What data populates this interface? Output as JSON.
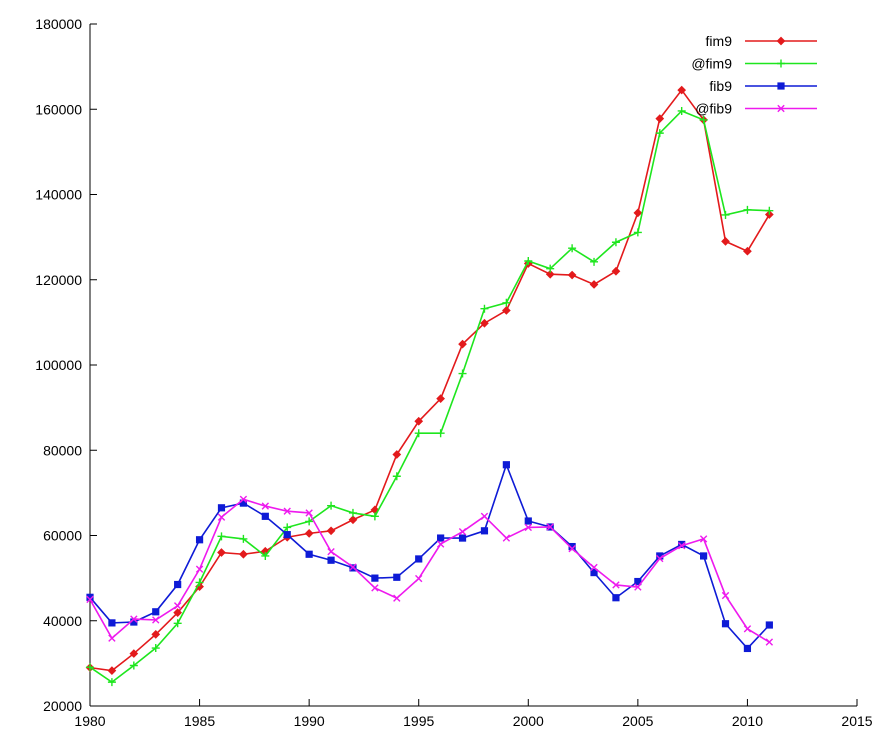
{
  "chart_data": {
    "type": "line",
    "title": "",
    "xlabel": "",
    "ylabel": "",
    "xlim": [
      1980,
      2015
    ],
    "ylim": [
      20000,
      180000
    ],
    "x_ticks": [
      1980,
      1985,
      1990,
      1995,
      2000,
      2005,
      2010,
      2015
    ],
    "y_ticks": [
      20000,
      40000,
      60000,
      80000,
      100000,
      120000,
      140000,
      160000,
      180000
    ],
    "x_tick_labels": [
      "1980",
      "1985",
      "1990",
      "1995",
      "2000",
      "2005",
      "2010",
      "2015"
    ],
    "y_tick_labels": [
      "20000",
      "40000",
      "60000",
      "80000",
      "100000",
      "120000",
      "140000",
      "160000",
      "180000"
    ],
    "grid": false,
    "legend_position": "top-right",
    "x": [
      1980,
      1981,
      1982,
      1983,
      1984,
      1985,
      1986,
      1987,
      1988,
      1989,
      1990,
      1991,
      1992,
      1993,
      1994,
      1995,
      1996,
      1997,
      1998,
      1999,
      2000,
      2001,
      2002,
      2003,
      2004,
      2005,
      2006,
      2007,
      2008,
      2009,
      2010,
      2011
    ],
    "series": [
      {
        "name": "fim9",
        "color": "#e31a1c",
        "marker": "diamond",
        "values": [
          29000,
          28300,
          32300,
          36800,
          41900,
          48000,
          56000,
          55600,
          56300,
          59600,
          60500,
          61100,
          63700,
          66000,
          79000,
          86800,
          92100,
          104900,
          109800,
          112800,
          123800,
          121300,
          121100,
          118900,
          122000,
          135700,
          157800,
          164500,
          157500,
          129000,
          126700,
          135300
        ]
      },
      {
        "name": "@fim9",
        "color": "#1ee61e",
        "marker": "plus",
        "values": [
          29100,
          25600,
          29500,
          33600,
          39400,
          49000,
          59800,
          59200,
          55200,
          61900,
          63300,
          67000,
          65300,
          64500,
          73900,
          84000,
          84000,
          98000,
          113200,
          114600,
          124400,
          122600,
          127400,
          124200,
          128800,
          131100,
          154400,
          159600,
          157500,
          135200,
          136400,
          136200
        ]
      },
      {
        "name": "fib9",
        "color": "#0e1bd6",
        "marker": "square",
        "values": [
          45500,
          39500,
          39700,
          42100,
          48500,
          59000,
          66500,
          67600,
          64500,
          60200,
          55600,
          54200,
          52400,
          50000,
          50200,
          54500,
          59400,
          59400,
          61100,
          76600,
          63400,
          62000,
          57400,
          51300,
          45400,
          49200,
          55200,
          57900,
          55200,
          39300,
          33500,
          39000
        ]
      },
      {
        "name": "@fib9",
        "color": "#ee1aee",
        "marker": "x",
        "values": [
          45000,
          35900,
          40400,
          40200,
          43500,
          52100,
          64300,
          68500,
          66900,
          65700,
          65300,
          56200,
          52600,
          47700,
          45300,
          49900,
          58000,
          60900,
          64500,
          59400,
          61900,
          62000,
          56900,
          52500,
          48400,
          47900,
          54600,
          57600,
          59200,
          45900,
          38100,
          35000
        ]
      }
    ]
  }
}
